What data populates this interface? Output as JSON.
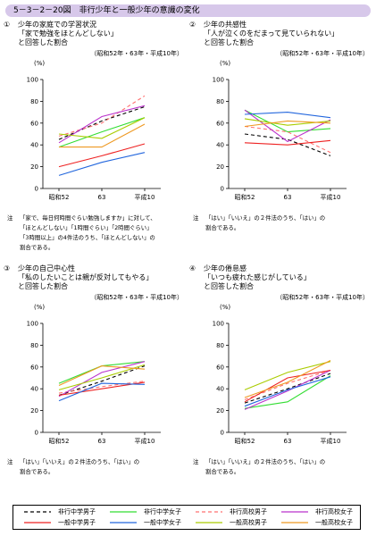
{
  "header": {
    "title": "5－3－2－20図　非行少年と一般少年の意識の変化"
  },
  "axis_common": {
    "unit": "(%)",
    "period_caption": "（昭和52年・63年・平成10年）"
  },
  "series_styles": [
    {
      "key": "d_jhs_boy",
      "name": "非行中学男子",
      "color": "#000000",
      "dash": "4,3"
    },
    {
      "key": "d_jhs_girl",
      "name": "非行中学女子",
      "color": "#33dd33",
      "dash": ""
    },
    {
      "key": "d_hs_boy",
      "name": "非行高校男子",
      "color": "#ff7070",
      "dash": "4,3"
    },
    {
      "key": "d_hs_girl",
      "name": "非行高校女子",
      "color": "#bb33cc",
      "dash": ""
    },
    {
      "key": "g_jhs_boy",
      "name": "一般中学男子",
      "color": "#ee2222",
      "dash": ""
    },
    {
      "key": "g_jhs_girl",
      "name": "一般中学女子",
      "color": "#2266dd",
      "dash": ""
    },
    {
      "key": "g_hs_boy",
      "name": "一般高校男子",
      "color": "#aacc00",
      "dash": ""
    },
    {
      "key": "g_hs_girl",
      "name": "一般高校女子",
      "color": "#ee9922",
      "dash": ""
    }
  ],
  "legend": [
    "非行中学男子",
    "非行中学女子",
    "非行高校男子",
    "非行高校女子",
    "一般中学男子",
    "一般中学女子",
    "一般高校男子",
    "一般高校女子"
  ],
  "panels": [
    {
      "num": "①",
      "title_lines": [
        "少年の家庭での学習状況",
        "「家で勉強をほとんどしない」",
        "と回答した割合"
      ],
      "note_label": "注",
      "note_lines": [
        "「家で、毎日何時間ぐらい勉強しますか」に対して、",
        "「ほとんどしない」「1時間ぐらい」「2時間ぐらい」",
        "「3時間以上」の4件法のうち、「ほとんどしない」の",
        "割合である。"
      ]
    },
    {
      "num": "②",
      "title_lines": [
        "少年の共感性",
        "「人が泣くのをだまって見ていられない」",
        "と回答した割合"
      ],
      "note_label": "注",
      "note_lines": [
        "「はい」「いいえ」の２件法のうち、「はい」の",
        "割合である。"
      ]
    },
    {
      "num": "③",
      "title_lines": [
        "少年の自己中心性",
        "「私のしたいことは親が反対してもやる」",
        "と回答した割合"
      ],
      "note_label": "注",
      "note_lines": [
        "「はい」「いいえ」の２件法のうち、「はい」の",
        "割合である。"
      ]
    },
    {
      "num": "④",
      "title_lines": [
        "少年の倦怠感",
        "「いつも疲れた感じがしている」",
        "と回答した割合"
      ],
      "note_label": "注",
      "note_lines": [
        "「はい」「いいえ」の２件法のうち、「はい」の",
        "割合である。"
      ]
    }
  ],
  "chart_data": [
    {
      "type": "line",
      "categories": [
        "昭和52",
        "63",
        "平成10"
      ],
      "ylim": [
        0,
        100
      ],
      "yticks": [
        0,
        20,
        40,
        60,
        80,
        100
      ],
      "series": [
        {
          "name": "非行中学男子",
          "values": [
            45,
            62,
            75
          ]
        },
        {
          "name": "非行中学女子",
          "values": [
            38,
            52,
            65
          ]
        },
        {
          "name": "非行高校男子",
          "values": [
            48,
            60,
            85
          ]
        },
        {
          "name": "非行高校女子",
          "values": [
            42,
            66,
            76
          ]
        },
        {
          "name": "一般中学男子",
          "values": [
            20,
            30,
            41
          ]
        },
        {
          "name": "一般中学女子",
          "values": [
            12,
            24,
            33
          ]
        },
        {
          "name": "一般高校男子",
          "values": [
            50,
            46,
            65
          ]
        },
        {
          "name": "一般高校女子",
          "values": [
            38,
            38,
            59
          ]
        }
      ]
    },
    {
      "type": "line",
      "categories": [
        "昭和52",
        "63",
        "平成10"
      ],
      "ylim": [
        0,
        100
      ],
      "yticks": [
        0,
        20,
        40,
        60,
        80,
        100
      ],
      "series": [
        {
          "name": "非行中学男子",
          "values": [
            50,
            45,
            30
          ]
        },
        {
          "name": "非行中学女子",
          "values": [
            72,
            52,
            55
          ]
        },
        {
          "name": "非行高校男子",
          "values": [
            57,
            52,
            33
          ]
        },
        {
          "name": "非行高校女子",
          "values": [
            72,
            43,
            63
          ]
        },
        {
          "name": "一般中学男子",
          "values": [
            42,
            40,
            44
          ]
        },
        {
          "name": "一般中学女子",
          "values": [
            68,
            70,
            65
          ]
        },
        {
          "name": "一般高校男子",
          "values": [
            64,
            58,
            62
          ]
        },
        {
          "name": "一般高校女子",
          "values": [
            57,
            62,
            60
          ]
        }
      ]
    },
    {
      "type": "line",
      "categories": [
        "昭和52",
        "63",
        "平成10"
      ],
      "ylim": [
        0,
        100
      ],
      "yticks": [
        0,
        20,
        40,
        60,
        80,
        100
      ],
      "series": [
        {
          "name": "非行中学男子",
          "values": [
            34,
            47,
            61
          ]
        },
        {
          "name": "非行中学女子",
          "values": [
            45,
            61,
            65
          ]
        },
        {
          "name": "非行高校男子",
          "values": [
            36,
            42,
            47
          ]
        },
        {
          "name": "非行高校女子",
          "values": [
            33,
            55,
            65
          ]
        },
        {
          "name": "一般中学男子",
          "values": [
            34,
            40,
            46
          ]
        },
        {
          "name": "一般中学女子",
          "values": [
            29,
            45,
            44
          ]
        },
        {
          "name": "一般高校男子",
          "values": [
            39,
            50,
            62
          ]
        },
        {
          "name": "一般高校女子",
          "values": [
            43,
            61,
            58
          ]
        }
      ]
    },
    {
      "type": "line",
      "categories": [
        "昭和52",
        "63",
        "平成10"
      ],
      "ylim": [
        0,
        100
      ],
      "yticks": [
        0,
        20,
        40,
        60,
        80,
        100
      ],
      "series": [
        {
          "name": "非行中学男子",
          "values": [
            27,
            40,
            54
          ]
        },
        {
          "name": "非行中学女子",
          "values": [
            22,
            28,
            52
          ]
        },
        {
          "name": "非行高校男子",
          "values": [
            30,
            45,
            57
          ]
        },
        {
          "name": "非行高校女子",
          "values": [
            21,
            38,
            57
          ]
        },
        {
          "name": "一般中学男子",
          "values": [
            28,
            50,
            57
          ]
        },
        {
          "name": "一般中学女子",
          "values": [
            24,
            39,
            51
          ]
        },
        {
          "name": "一般高校男子",
          "values": [
            39,
            55,
            65
          ]
        },
        {
          "name": "一般高校女子",
          "values": [
            32,
            46,
            66
          ]
        }
      ]
    }
  ]
}
